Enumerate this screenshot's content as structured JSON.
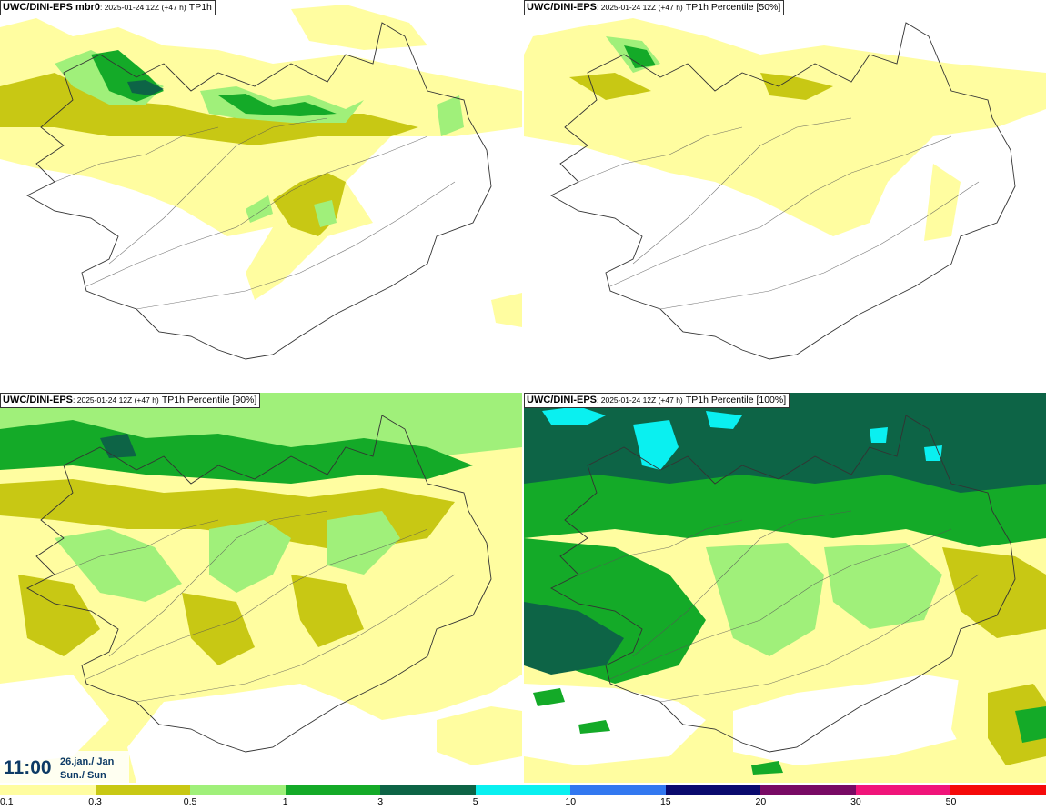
{
  "panels": [
    {
      "model": "UWC/DINI-EPS mbr0",
      "meta": "2025-01-24 12Z (+47 h)",
      "field": "TP1h"
    },
    {
      "model": "UWC/DINI-EPS",
      "meta": "2025-01-24 12Z (+47 h)",
      "field": "TP1h Percentile [50%]"
    },
    {
      "model": "UWC/DINI-EPS",
      "meta": "2025-01-24 12Z (+47 h)",
      "field": "TP1h Percentile [90%]"
    },
    {
      "model": "UWC/DINI-EPS",
      "meta": "2025-01-24 12Z (+47 h)",
      "field": "TP1h Percentile [100%]"
    }
  ],
  "valid_time": {
    "clock": "11:00",
    "date_line1": "26.jan./ Jan",
    "date_line2": "Sun./ Sun"
  },
  "colorbar": {
    "colors": [
      "#fffda0",
      "#c8c814",
      "#a0f07a",
      "#14aa28",
      "#0d6446",
      "#0af0f0",
      "#3278f0",
      "#0a0a6e",
      "#780a64",
      "#f0147a",
      "#f50a0a"
    ],
    "ticks": [
      "0.1",
      "0.3",
      "0.5",
      "1",
      "3",
      "5",
      "10",
      "15",
      "20",
      "30",
      "50"
    ]
  },
  "map_colors": {
    "ocean": "#ffffff",
    "coastline": "#333333",
    "roads": "#555555"
  }
}
